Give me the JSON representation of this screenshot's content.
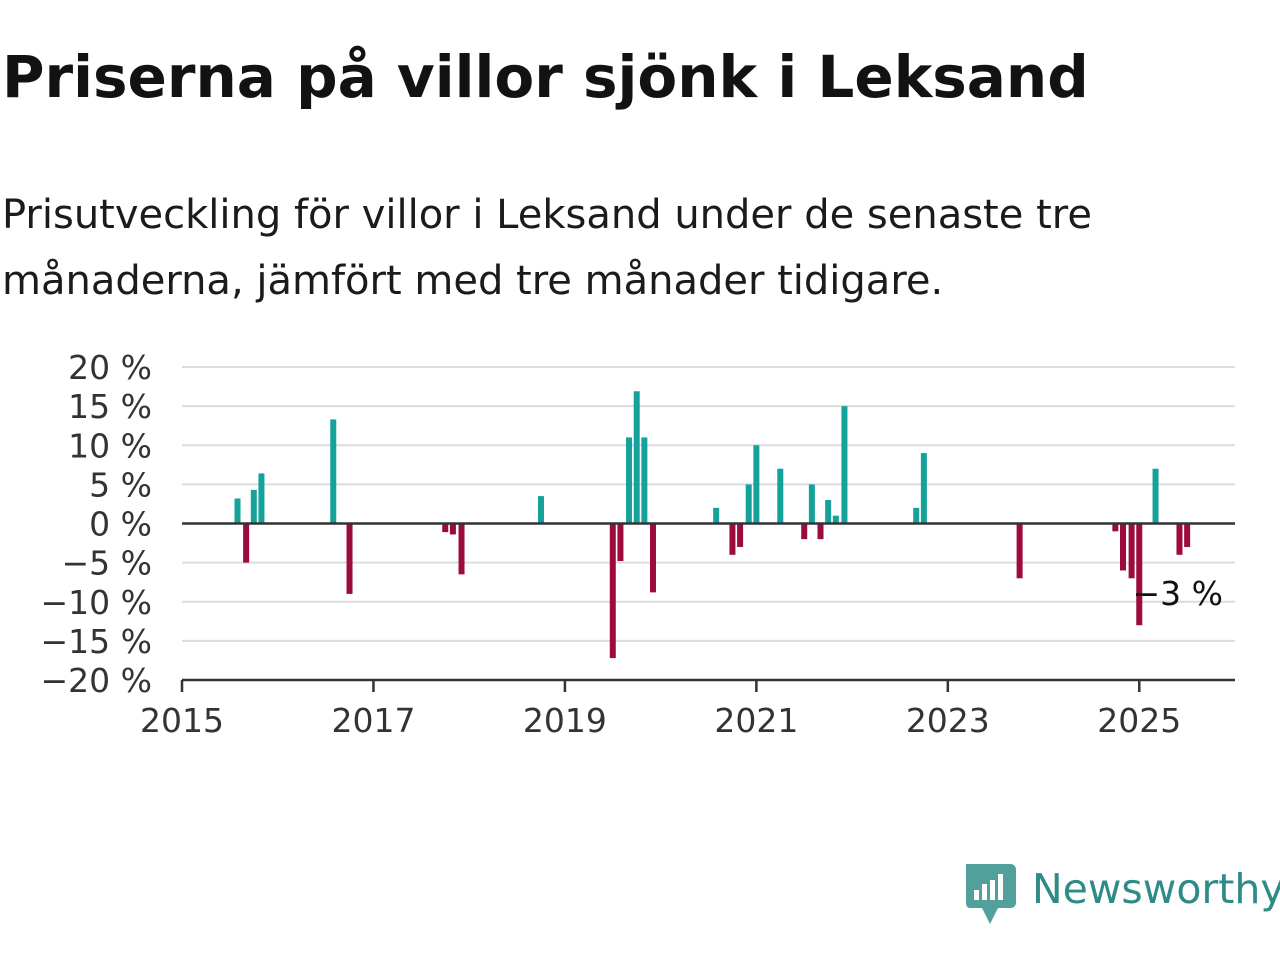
{
  "title": "Priserna på villor sjönk i Leksand",
  "subtitle": "Prisutveckling för villor i Leksand under de senaste tre månaderna, jämfört med tre månader tidigare.",
  "brand": {
    "name": "Newsworthy",
    "color": "#2e8b86"
  },
  "colors": {
    "positive": "#14a29a",
    "negative": "#9c0a3e",
    "grid": "#dcdcdc",
    "axis": "#333333"
  },
  "chart_data": {
    "type": "bar",
    "ylim": [
      -20,
      20
    ],
    "xlim": [
      2015,
      2026
    ],
    "y_ticks": [
      20,
      15,
      10,
      5,
      0,
      -5,
      -10,
      -15,
      -20
    ],
    "y_tick_labels": [
      "20 %",
      "15 %",
      "10 %",
      "5 %",
      "0 %",
      "−5 %",
      "−10 %",
      "−15 %",
      "−20 %"
    ],
    "x_ticks": [
      2015,
      2017,
      2019,
      2021,
      2023,
      2025
    ],
    "x_tick_labels": [
      "2015",
      "2017",
      "2019",
      "2021",
      "2023",
      "2025"
    ],
    "grid": true,
    "annotation": {
      "text": "−3 %",
      "x": 2025.5,
      "y": -3
    },
    "x": [
      2015.58,
      2015.67,
      2015.75,
      2015.83,
      2016.58,
      2016.75,
      2017.75,
      2017.83,
      2017.92,
      2018.75,
      2019.5,
      2019.58,
      2019.67,
      2019.75,
      2019.83,
      2019.92,
      2020.58,
      2020.75,
      2020.83,
      2020.92,
      2021.0,
      2021.25,
      2021.5,
      2021.58,
      2021.67,
      2021.75,
      2021.83,
      2021.92,
      2022.67,
      2022.75,
      2023.75,
      2024.75,
      2024.83,
      2024.92,
      2025.0,
      2025.17,
      2025.42,
      2025.5
    ],
    "values": [
      3.2,
      -5.0,
      4.3,
      6.4,
      13.3,
      -9.0,
      -1.1,
      -1.4,
      -6.5,
      3.5,
      -17.2,
      -4.8,
      11.0,
      16.9,
      11.0,
      -8.8,
      2.0,
      -4.0,
      -3.0,
      5.0,
      10.0,
      7.0,
      -2.0,
      5.0,
      -2.0,
      3.0,
      1.0,
      15.0,
      2.0,
      9.0,
      -7.0,
      -1.0,
      -6.0,
      -7.0,
      -13.0,
      7.0,
      -4.0,
      -3.0
    ]
  }
}
